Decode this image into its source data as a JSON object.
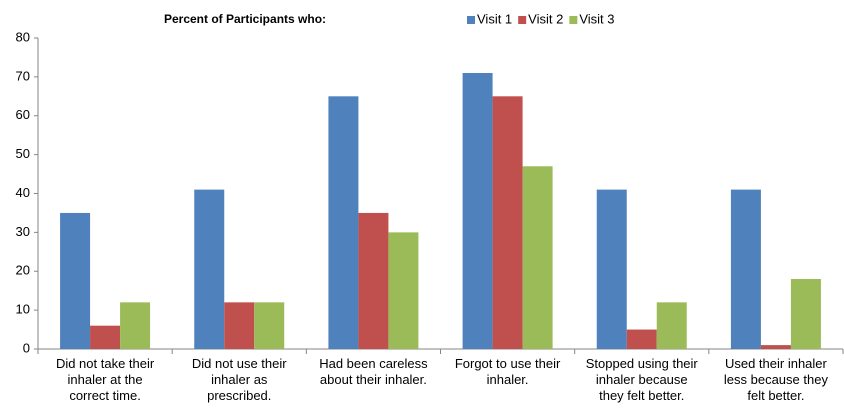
{
  "chart_data": {
    "type": "bar",
    "title": "Percent of Participants who:",
    "categories": [
      "Did not take their\ninhaler at the\ncorrect time.",
      "Did not use their\ninhaler as\nprescribed.",
      "Had been careless\nabout their inhaler.",
      "Forgot to use their\ninhaler.",
      "Stopped using their\ninhaler because\nthey felt better.",
      "Used their inhaler\nless because they\nfelt better."
    ],
    "series": [
      {
        "name": "Visit 1",
        "color": "#4f81bd",
        "values": [
          35,
          41,
          65,
          71,
          41,
          41
        ]
      },
      {
        "name": "Visit 2",
        "color": "#c0504d",
        "values": [
          6,
          12,
          35,
          65,
          5,
          1
        ]
      },
      {
        "name": "Visit 3",
        "color": "#9bbb59",
        "values": [
          12,
          12,
          30,
          47,
          12,
          18
        ]
      }
    ],
    "ylim": [
      0,
      80
    ],
    "yticks": [
      0,
      10,
      20,
      30,
      40,
      50,
      60,
      70,
      80
    ],
    "grid": false,
    "legend": "top"
  }
}
